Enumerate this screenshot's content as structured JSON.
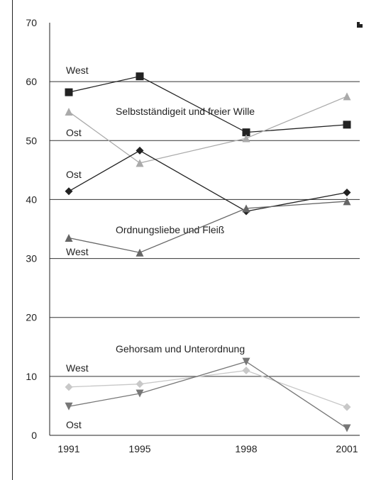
{
  "chart_data": {
    "type": "line",
    "categories": [
      "1991",
      "1995",
      "1998",
      "2001"
    ],
    "ylim": [
      0,
      70
    ],
    "yticks": [
      0,
      10,
      20,
      30,
      40,
      50,
      60,
      70
    ],
    "grid": true,
    "annotations": [
      "West",
      "Selbstständigeit und freier Wille",
      "Ost",
      "Ost",
      "Ordnungsliebe und Fleiß",
      "West",
      "Gehorsam und Unterordnung",
      "West",
      "Ost"
    ],
    "series": [
      {
        "color": "#222222",
        "marker": "square",
        "values": [
          58.2,
          60.9,
          51.4,
          52.7
        ]
      },
      {
        "color": "#aaaaaa",
        "marker": "triangle-up",
        "values": [
          54.9,
          46.2,
          50.4,
          57.5
        ]
      },
      {
        "color": "#222222",
        "marker": "diamond",
        "values": [
          41.4,
          48.3,
          38.0,
          41.2
        ]
      },
      {
        "color": "#666666",
        "marker": "triangle-up",
        "values": [
          33.5,
          31.0,
          38.5,
          39.7
        ]
      },
      {
        "color": "#c8c8c8",
        "marker": "diamond",
        "values": [
          8.2,
          8.7,
          11.0,
          4.8
        ]
      },
      {
        "color": "#777777",
        "marker": "triangle-down",
        "values": [
          4.9,
          7.1,
          12.5,
          1.2
        ]
      }
    ]
  }
}
